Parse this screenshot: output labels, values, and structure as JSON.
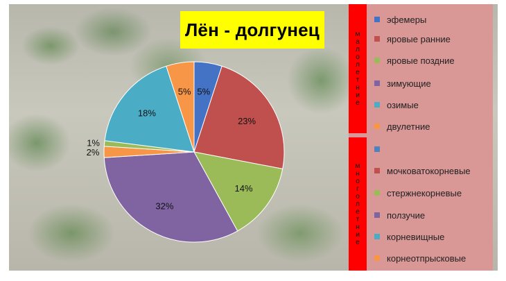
{
  "title": "Лён - долгунец",
  "groups": {
    "annual": {
      "letters": [
        "м",
        "а",
        "л",
        "о",
        "л",
        "е",
        "т",
        "н",
        "и",
        "е"
      ]
    },
    "perennial": {
      "letters": [
        "м",
        "н",
        "о",
        "г",
        "о",
        "л",
        "е",
        "т",
        "н",
        "и",
        "е"
      ]
    }
  },
  "legend": [
    {
      "label": "эфемеры",
      "color": "#4472c4"
    },
    {
      "label": "яровые ранние",
      "color": "#c0504d"
    },
    {
      "label": "яровые поздние",
      "color": "#9bbb59"
    },
    {
      "label": "зимующие",
      "color": "#8064a2"
    },
    {
      "label": "озимые",
      "color": "#4bacc6"
    },
    {
      "label": "двулетние",
      "color": "#f79646"
    },
    {
      "label": "",
      "color": "#4f81bd"
    },
    {
      "label": "мочковатокорневые",
      "color": "#c0504d"
    },
    {
      "label": "стержнекорневые",
      "color": "#9bbb59"
    },
    {
      "label": "ползучие",
      "color": "#8064a2"
    },
    {
      "label": "корневищные",
      "color": "#4bacc6"
    },
    {
      "label": "корнеотпрысковые",
      "color": "#f79646"
    }
  ],
  "chart_data": {
    "type": "pie",
    "title": "Лён - долгунец",
    "slices": [
      {
        "value": 5,
        "label": "5%",
        "color": "#4472c4"
      },
      {
        "value": 23,
        "label": "23%",
        "color": "#c0504d"
      },
      {
        "value": 14,
        "label": "14%",
        "color": "#9bbb59"
      },
      {
        "value": 32,
        "label": "32%",
        "color": "#8064a2"
      },
      {
        "value": 2,
        "label": "2%",
        "color": "#f79646"
      },
      {
        "value": 1,
        "label": "1%",
        "color": "#9bbb59"
      },
      {
        "value": 18,
        "label": "18%",
        "color": "#4bacc6"
      },
      {
        "value": 5,
        "label": "5%",
        "color": "#f79646"
      }
    ]
  }
}
